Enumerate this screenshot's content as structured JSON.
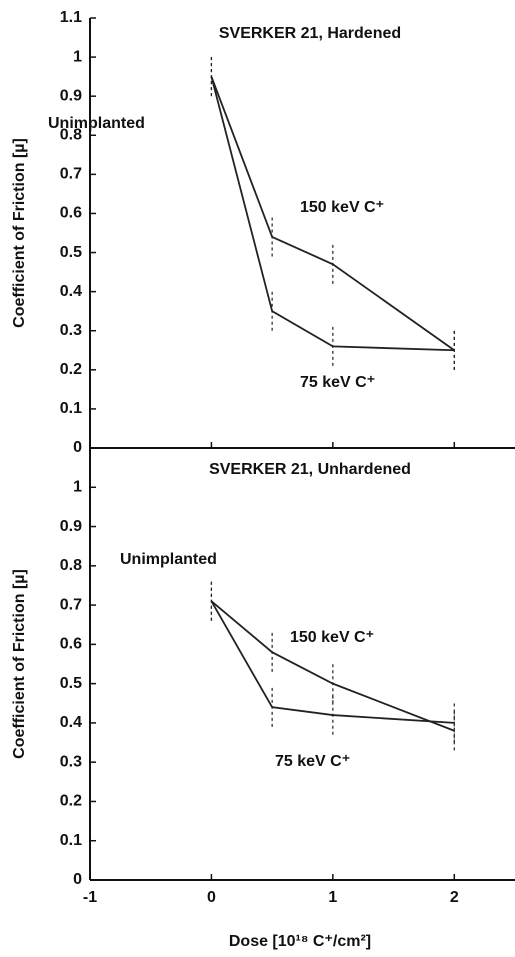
{
  "chart_data": [
    {
      "type": "line",
      "title": "SVERKER 21, Hardened",
      "ylabel": "Coefficient of Friction [µ]",
      "annotation": "Unimplanted",
      "x": [
        0,
        0.5,
        1,
        2
      ],
      "xlim": [
        -1,
        2.5
      ],
      "xticks": [
        -1,
        0,
        1,
        2
      ],
      "ylim": [
        0,
        1.1
      ],
      "yticks": [
        0,
        0.1,
        0.2,
        0.3,
        0.4,
        0.5,
        0.6,
        0.7,
        0.8,
        0.9,
        1,
        1.1
      ],
      "series": [
        {
          "name": "150 keV C⁺",
          "color": "#222222",
          "values": [
            0.95,
            0.54,
            0.47,
            0.25
          ],
          "errors": [
            0.05,
            0.05,
            0.05,
            0.05
          ]
        },
        {
          "name": "75 keV C⁺",
          "color": "#222222",
          "values": [
            0.95,
            0.35,
            0.26,
            0.25
          ],
          "errors": [
            0.05,
            0.05,
            0.05,
            0.05
          ]
        }
      ]
    },
    {
      "type": "line",
      "title": "SVERKER 21, Unhardened",
      "ylabel": "Coefficient of Friction [µ]",
      "annotation": "Unimplanted",
      "xlabel": "Dose [10¹⁸ C⁺/cm²]",
      "x": [
        0,
        0.5,
        1,
        2
      ],
      "xlim": [
        -1,
        2.5
      ],
      "xticks": [
        -1,
        0,
        1,
        2
      ],
      "ylim": [
        0,
        1.1
      ],
      "yticks": [
        0,
        0.1,
        0.2,
        0.3,
        0.4,
        0.5,
        0.6,
        0.7,
        0.8,
        0.9,
        1
      ],
      "series": [
        {
          "name": "150 keV C⁺",
          "color": "#222222",
          "values": [
            0.71,
            0.58,
            0.5,
            0.38
          ],
          "errors": [
            0.05,
            0.05,
            0.05,
            0.05
          ]
        },
        {
          "name": "75 keV C⁺",
          "color": "#222222",
          "values": [
            0.71,
            0.44,
            0.42,
            0.4
          ],
          "errors": [
            0.05,
            0.05,
            0.05,
            0.05
          ]
        }
      ]
    }
  ]
}
